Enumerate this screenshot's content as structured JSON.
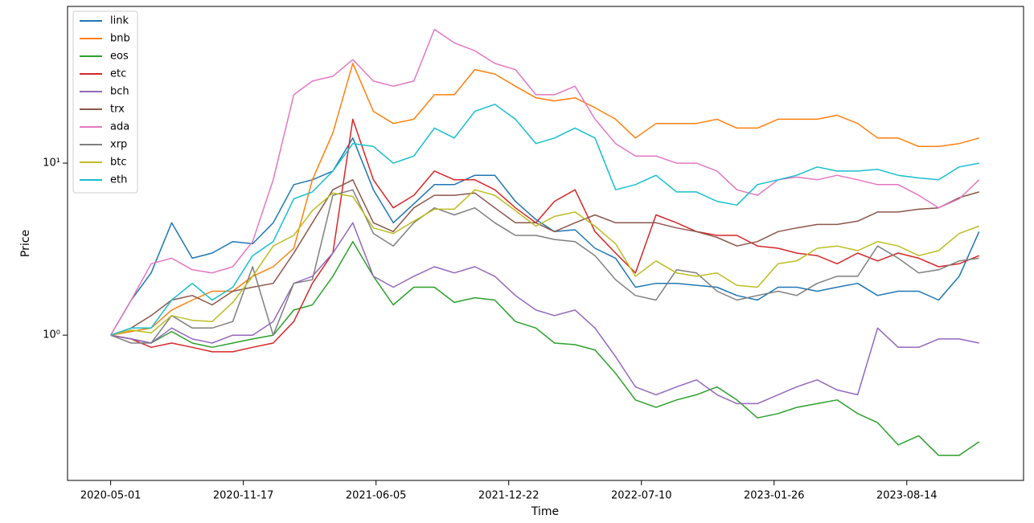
{
  "chart_data": {
    "type": "line",
    "x_label": "Time",
    "y_label": "Price",
    "log_y": true,
    "legend": "upper left",
    "x": [
      "2020-05-01",
      "2020-06-01",
      "2020-07-01",
      "2020-08-01",
      "2020-09-01",
      "2020-10-01",
      "2020-11-01",
      "2020-12-01",
      "2021-01-01",
      "2021-02-01",
      "2021-03-01",
      "2021-04-01",
      "2021-05-01",
      "2021-06-01",
      "2021-07-01",
      "2021-08-01",
      "2021-09-01",
      "2021-10-01",
      "2021-11-01",
      "2021-12-01",
      "2022-01-01",
      "2022-02-01",
      "2022-03-01",
      "2022-04-01",
      "2022-05-01",
      "2022-06-01",
      "2022-07-01",
      "2022-08-01",
      "2022-09-01",
      "2022-10-01",
      "2022-11-01",
      "2022-12-01",
      "2023-01-01",
      "2023-02-01",
      "2023-03-01",
      "2023-04-01",
      "2023-05-01",
      "2023-06-01",
      "2023-07-01",
      "2023-08-01",
      "2023-09-01",
      "2023-10-01",
      "2023-11-01",
      "2023-12-01"
    ],
    "xlim": [
      "2020-02-26",
      "2024-02-06"
    ],
    "xticks": [
      "2020-05-01",
      "2020-11-17",
      "2021-06-05",
      "2021-12-22",
      "2022-07-10",
      "2023-01-26",
      "2023-08-14"
    ],
    "ylim": [
      0.143,
      81.5
    ],
    "yticks": [
      {
        "value": 1,
        "label": "10⁰"
      },
      {
        "value": 10,
        "label": "10¹"
      }
    ],
    "series": [
      {
        "name": "link",
        "color": "#1f77b4",
        "values": [
          1,
          1.6,
          2.3,
          4.5,
          2.8,
          3.0,
          3.5,
          3.4,
          4.5,
          7.5,
          8,
          9,
          14,
          7,
          4.5,
          5.8,
          7.5,
          7.5,
          8.5,
          8.5,
          6,
          4.7,
          4.0,
          4.1,
          3.2,
          2.8,
          1.9,
          2.0,
          2.0,
          1.95,
          1.9,
          1.7,
          1.6,
          1.9,
          1.9,
          1.8,
          1.9,
          2.0,
          1.7,
          1.8,
          1.8,
          1.6,
          2.2,
          4.0
        ]
      },
      {
        "name": "bnb",
        "color": "#ff7f0e",
        "values": [
          1,
          1.05,
          1.1,
          1.4,
          1.6,
          1.8,
          1.8,
          2.2,
          2.5,
          3.2,
          8,
          15,
          38,
          20,
          17,
          18,
          25,
          25,
          35,
          33,
          28,
          24,
          23,
          24,
          21,
          18,
          14,
          17,
          17,
          17,
          18,
          16,
          16,
          18,
          18,
          18,
          19,
          17,
          14,
          14,
          12.5,
          12.5,
          13,
          14
        ]
      },
      {
        "name": "eos",
        "color": "#2ca02c",
        "values": [
          1,
          0.95,
          0.9,
          1.05,
          0.9,
          0.85,
          0.9,
          0.95,
          1.0,
          1.4,
          1.5,
          2.2,
          3.5,
          2.2,
          1.5,
          1.9,
          1.9,
          1.55,
          1.65,
          1.6,
          1.2,
          1.1,
          0.9,
          0.88,
          0.82,
          0.6,
          0.42,
          0.38,
          0.42,
          0.45,
          0.5,
          0.42,
          0.33,
          0.35,
          0.38,
          0.4,
          0.42,
          0.35,
          0.31,
          0.23,
          0.26,
          0.2,
          0.2,
          0.24
        ]
      },
      {
        "name": "etc",
        "color": "#d62728",
        "values": [
          1,
          0.95,
          0.85,
          0.9,
          0.85,
          0.8,
          0.8,
          0.85,
          0.9,
          1.2,
          2.0,
          3.0,
          18,
          8,
          5.5,
          6.5,
          9,
          8,
          8,
          7,
          5.5,
          4.5,
          6,
          7,
          4,
          3,
          2.3,
          5,
          4.5,
          4,
          3.8,
          3.8,
          3.3,
          3.2,
          3.0,
          2.9,
          2.6,
          3.0,
          2.7,
          3.0,
          2.8,
          2.5,
          2.6,
          2.9
        ]
      },
      {
        "name": "bch",
        "color": "#9467bd",
        "values": [
          1,
          0.95,
          0.9,
          1.1,
          0.95,
          0.9,
          1.0,
          1.0,
          1.2,
          2.0,
          2.2,
          3.0,
          4.5,
          2.2,
          1.9,
          2.2,
          2.5,
          2.3,
          2.5,
          2.2,
          1.7,
          1.4,
          1.3,
          1.4,
          1.1,
          0.75,
          0.5,
          0.45,
          0.5,
          0.55,
          0.45,
          0.4,
          0.4,
          0.45,
          0.5,
          0.55,
          0.48,
          0.45,
          1.1,
          0.85,
          0.85,
          0.95,
          0.95,
          0.9
        ]
      },
      {
        "name": "trx",
        "color": "#8c564b",
        "values": [
          1,
          1.1,
          1.3,
          1.6,
          1.7,
          1.5,
          1.8,
          1.9,
          2.0,
          3.0,
          4.5,
          7.0,
          8,
          4.5,
          4.0,
          5.5,
          6.5,
          6.5,
          6.7,
          5.5,
          4.5,
          4.5,
          4.0,
          4.5,
          5.0,
          4.5,
          4.5,
          4.5,
          4.2,
          4.0,
          3.7,
          3.3,
          3.5,
          4.0,
          4.2,
          4.4,
          4.4,
          4.6,
          5.2,
          5.2,
          5.4,
          5.5,
          6.3,
          6.8
        ]
      },
      {
        "name": "ada",
        "color": "#e377c2",
        "values": [
          1,
          1.6,
          2.6,
          2.8,
          2.4,
          2.3,
          2.5,
          3.5,
          8,
          25,
          30,
          32,
          40,
          30,
          28,
          30,
          60,
          50,
          45,
          38,
          35,
          25,
          25,
          28,
          18,
          13,
          11,
          11,
          10,
          10,
          9,
          7,
          6.5,
          8,
          8.3,
          8,
          8.5,
          8.0,
          7.5,
          7.5,
          6.5,
          5.5,
          6.2,
          8
        ]
      },
      {
        "name": "xrp",
        "color": "#7f7f7f",
        "values": [
          1,
          0.9,
          0.9,
          1.3,
          1.1,
          1.1,
          1.2,
          2.5,
          1.0,
          2.0,
          2.1,
          6.5,
          7.0,
          3.9,
          3.3,
          4.5,
          5.5,
          5.0,
          5.5,
          4.5,
          3.8,
          3.8,
          3.6,
          3.5,
          2.9,
          2.1,
          1.7,
          1.6,
          2.4,
          2.3,
          1.8,
          1.6,
          1.7,
          1.8,
          1.7,
          2.0,
          2.2,
          2.2,
          3.3,
          2.8,
          2.3,
          2.4,
          2.7,
          2.8
        ]
      },
      {
        "name": "btc",
        "color": "#bcbd22",
        "values": [
          1,
          1.07,
          1.03,
          1.3,
          1.22,
          1.2,
          1.55,
          2.2,
          3.3,
          3.8,
          5.3,
          6.7,
          6.4,
          4.2,
          3.9,
          4.6,
          5.4,
          5.4,
          7.0,
          6.5,
          5.3,
          4.3,
          4.9,
          5.2,
          4.3,
          3.4,
          2.2,
          2.7,
          2.3,
          2.2,
          2.3,
          1.95,
          1.9,
          2.6,
          2.7,
          3.2,
          3.3,
          3.1,
          3.5,
          3.3,
          2.9,
          3.1,
          3.9,
          4.3
        ]
      },
      {
        "name": "eth",
        "color": "#17becf",
        "values": [
          1,
          1.1,
          1.1,
          1.6,
          2.0,
          1.6,
          1.9,
          2.9,
          3.5,
          6.2,
          6.8,
          9.0,
          13,
          12.5,
          10,
          11,
          16,
          14,
          20,
          22,
          18,
          13,
          14,
          16,
          14,
          7,
          7.5,
          8.5,
          6.8,
          6.8,
          6,
          5.7,
          7.5,
          8,
          8.5,
          9.5,
          9,
          9,
          9.2,
          8.5,
          8.2,
          8.0,
          9.5,
          10
        ]
      }
    ]
  }
}
